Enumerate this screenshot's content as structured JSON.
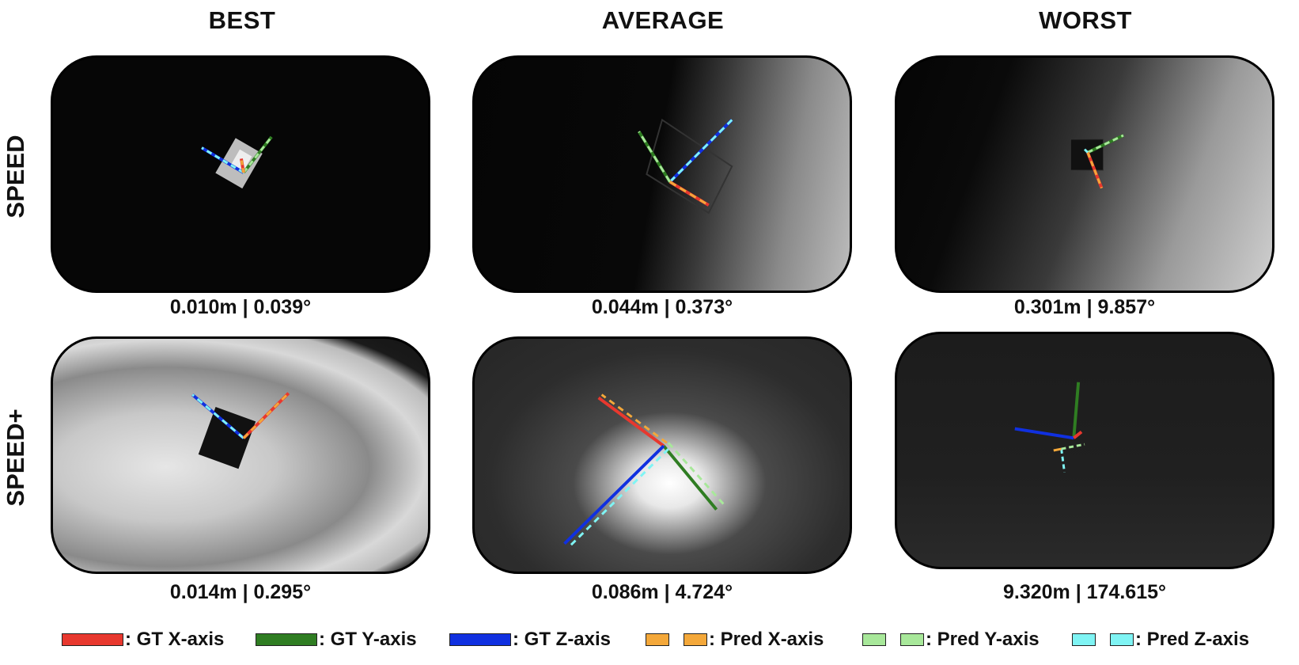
{
  "columns": [
    "BEST",
    "AVERAGE",
    "WORST"
  ],
  "rows": [
    "SPEED",
    "SPEED+"
  ],
  "captions": {
    "speed": [
      "0.010m | 0.039°",
      "0.044m | 0.373°",
      "0.301m | 9.857°"
    ],
    "speedplus": [
      "0.014m | 0.295°",
      "0.086m | 4.724°",
      "9.320m | 174.615°"
    ]
  },
  "legend": {
    "gt_x": ": GT X-axis",
    "gt_y": ": GT Y-axis",
    "gt_z": ": GT Z-axis",
    "pred_x": ": Pred X-axis",
    "pred_y": ": Pred Y-axis",
    "pred_z": ": Pred Z-axis"
  },
  "colors": {
    "gt_x": "#e8382e",
    "gt_y": "#2f7d22",
    "gt_z": "#1030e0",
    "pred_x": "#f4a83a",
    "pred_y": "#a8e89a",
    "pred_z": "#7ff4f4"
  }
}
